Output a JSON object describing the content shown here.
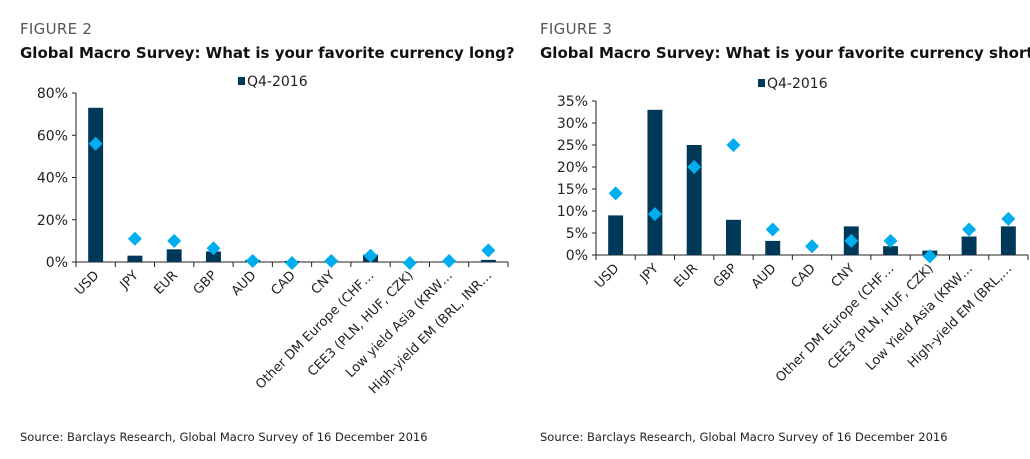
{
  "chart_data": [
    {
      "figure": "FIGURE 2",
      "title": "Global Macro Survey: What is your favorite currency long?",
      "type": "bar",
      "legend": "Q4-2016",
      "legend_placement": "top",
      "categories": [
        "USD",
        "JPY",
        "EUR",
        "GBP",
        "AUD",
        "CAD",
        "CNY",
        "Other DM Europe (CHF…",
        "CEE3 (PLN, HUF, CZK)",
        "Low yield Asia (KRW…",
        "High-yield EM (BRL, INR…"
      ],
      "series": [
        {
          "name": "Q4-2016",
          "kind": "bar",
          "values": [
            73,
            3,
            6,
            5,
            1,
            0.5,
            0,
            3.5,
            0,
            0,
            1
          ]
        },
        {
          "kind": "marker",
          "values": [
            56,
            11,
            10,
            6.5,
            0.5,
            -0.5,
            0.5,
            3,
            -0.5,
            0.5,
            5.5
          ]
        }
      ],
      "ylim": [
        0,
        80
      ],
      "yticks": [
        0,
        20,
        40,
        60,
        80
      ],
      "ytick_labels": [
        "0%",
        "20%",
        "40%",
        "60%",
        "80%"
      ],
      "grid": false,
      "source": "Source: Barclays Research, Global Macro Survey of 16 December 2016"
    },
    {
      "figure": "FIGURE 3",
      "title": "Global Macro Survey: What is your favorite currency short?",
      "type": "bar",
      "legend": "Q4-2016",
      "legend_placement": "top",
      "categories": [
        "USD",
        "JPY",
        "EUR",
        "GBP",
        "AUD",
        "CAD",
        "CNY",
        "Other DM Europe (CHF…",
        "CEE3  (PLN, HUF, CZK)",
        "Low Yield Asia (KRW…",
        "High-yield EM (BRL,…"
      ],
      "series": [
        {
          "name": "Q4-2016",
          "kind": "bar",
          "values": [
            9,
            33,
            25,
            8,
            3.2,
            0,
            6.5,
            2,
            1,
            4.2,
            6.5
          ]
        },
        {
          "kind": "marker",
          "values": [
            14,
            9.3,
            20,
            25,
            5.8,
            2,
            3.2,
            3.2,
            -0.3,
            5.8,
            8.2
          ]
        }
      ],
      "ylim": [
        0,
        35
      ],
      "yticks": [
        0,
        5,
        10,
        15,
        20,
        25,
        30,
        35
      ],
      "ytick_labels": [
        "0%",
        "5%",
        "10%",
        "15%",
        "20%",
        "25%",
        "30%",
        "35%"
      ],
      "grid": false,
      "source": "Source: Barclays Research, Global Macro Survey of 16 December 2016"
    }
  ],
  "colors": {
    "bar": "#003859",
    "marker": "#00aeef",
    "axis": "#222222"
  }
}
